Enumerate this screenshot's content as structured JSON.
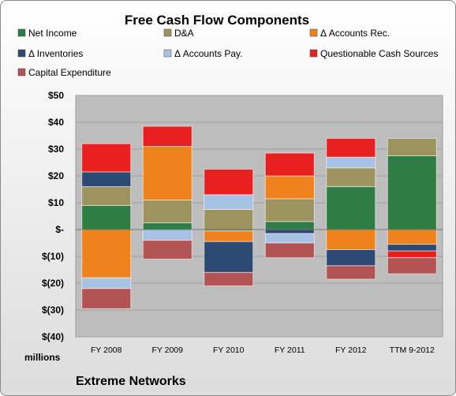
{
  "chart_data": {
    "type": "bar",
    "stacked": true,
    "title": "Free Cash Flow Components",
    "categories": [
      "FY 2008",
      "FY 2009",
      "FY 2010",
      "FY 2011",
      "FY 2012",
      "TTM 9-2012"
    ],
    "series": [
      {
        "name": "Net Income",
        "color": "#2e7d44",
        "values": [
          9,
          2.5,
          -0.5,
          3,
          16,
          27.5
        ]
      },
      {
        "name": "D&A",
        "color": "#9c935f",
        "values": [
          7,
          8.5,
          7.5,
          8.5,
          7,
          6.5
        ]
      },
      {
        "name": "Δ Accounts Rec.",
        "color": "#f0821e",
        "values": [
          -18,
          20,
          -4,
          8.5,
          -7.5,
          -5.5
        ]
      },
      {
        "name": "Δ Inventories",
        "color": "#2c4a73",
        "values": [
          5.5,
          0,
          -11.5,
          -1.5,
          -6,
          -2.5
        ]
      },
      {
        "name": "Δ Accounts Pay.",
        "color": "#a8c2e6",
        "values": [
          -4,
          -4,
          5.5,
          -3.5,
          4,
          0
        ]
      },
      {
        "name": "Questionable Cash Sources",
        "color": "#e82020",
        "values": [
          10.5,
          7.5,
          9.5,
          8.5,
          7,
          -2.5
        ]
      },
      {
        "name": "Capital Expenditure",
        "color": "#b35454",
        "values": [
          -7.5,
          -7,
          -5,
          -5.5,
          -5,
          -6
        ]
      }
    ],
    "ylim": [
      -40,
      50
    ],
    "yticks": [
      50,
      40,
      30,
      20,
      10,
      0,
      -10,
      -20,
      -30,
      -40
    ],
    "ytick_labels": [
      "$50",
      "$40",
      "$30",
      "$20",
      "$10",
      "$-",
      "$(10)",
      "$(20)",
      "$(30)",
      "$(40)"
    ],
    "units_label": "millions",
    "company": "Extreme Networks",
    "legend_position": "top",
    "grid": true,
    "plot_background": "#bdbdbd"
  }
}
